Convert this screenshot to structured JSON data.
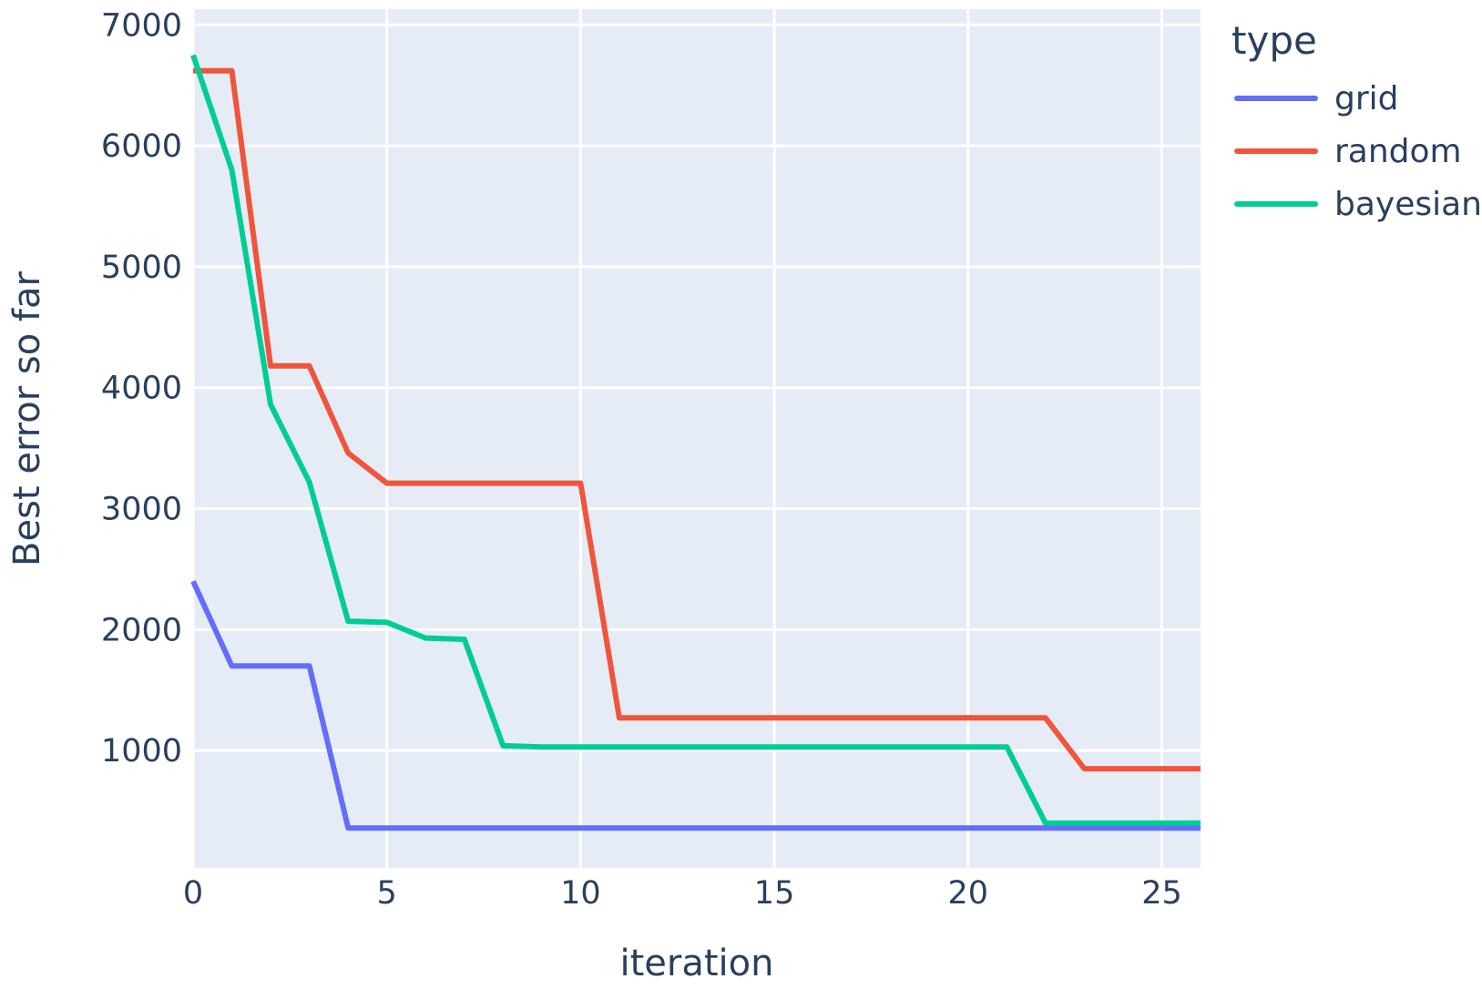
{
  "figure": {
    "page_bg_color": "#ffffff",
    "plot_bg_color": "#e5ecf6",
    "grid_color": "#ffffff",
    "text_color": "#2a3f5f",
    "line_width": 6
  },
  "legend": {
    "title": "type"
  },
  "chart_data": {
    "type": "line",
    "title": "",
    "xlabel": "iteration",
    "ylabel": "Best error so far",
    "legend_title": "type",
    "legend_position": "right-top",
    "grid": true,
    "xlim": [
      0,
      26
    ],
    "ylim": [
      30,
      7130
    ],
    "xticks": [
      0,
      5,
      10,
      15,
      20,
      25
    ],
    "yticks": [
      1000,
      2000,
      3000,
      4000,
      5000,
      6000,
      7000
    ],
    "x": [
      0,
      1,
      2,
      3,
      4,
      5,
      6,
      7,
      8,
      9,
      10,
      11,
      12,
      13,
      14,
      15,
      16,
      17,
      18,
      19,
      20,
      21,
      22,
      23,
      24,
      25,
      26
    ],
    "series": [
      {
        "name": "grid",
        "color": "#636efa",
        "values": [
          2400,
          1700,
          1700,
          1700,
          360,
          360,
          360,
          360,
          360,
          360,
          360,
          360,
          360,
          360,
          360,
          360,
          360,
          360,
          360,
          360,
          360,
          360,
          360,
          360,
          360,
          360,
          360
        ]
      },
      {
        "name": "random",
        "color": "#ef553b",
        "values": [
          6620,
          6620,
          4180,
          4180,
          3460,
          3210,
          3210,
          3210,
          3210,
          3210,
          3210,
          1270,
          1270,
          1270,
          1270,
          1270,
          1270,
          1270,
          1270,
          1270,
          1270,
          1270,
          1270,
          850,
          850,
          850,
          850
        ]
      },
      {
        "name": "bayesian",
        "color": "#00cc96",
        "values": [
          6750,
          5800,
          3860,
          3220,
          2070,
          2060,
          1930,
          1920,
          1040,
          1030,
          1030,
          1030,
          1030,
          1030,
          1030,
          1030,
          1030,
          1030,
          1030,
          1030,
          1030,
          1030,
          400,
          400,
          400,
          400,
          400
        ]
      }
    ]
  }
}
